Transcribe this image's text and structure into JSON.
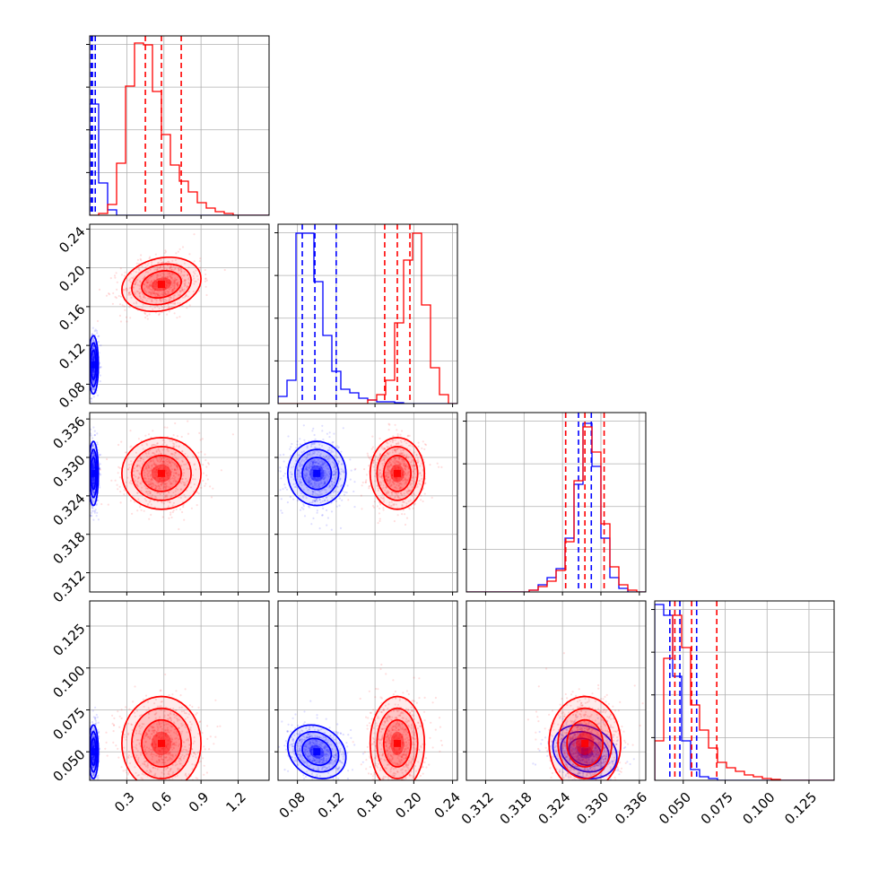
{
  "chart_data": {
    "type": "corner",
    "title": "",
    "parameters": [
      "",
      "",
      "",
      ""
    ],
    "colors": {
      "series_a": "#0000ff",
      "series_b": "#ff0000"
    },
    "grid": true,
    "legend": "none",
    "axes": [
      {
        "range": [
          0.0,
          1.45
        ],
        "ticks": [
          0.3,
          0.6,
          0.9,
          1.2
        ],
        "tick_labels": [
          "0.3",
          "0.6",
          "0.9",
          "1.2"
        ]
      },
      {
        "range": [
          0.06,
          0.245
        ],
        "ticks": [
          0.08,
          0.12,
          0.16,
          0.2,
          0.24
        ],
        "tick_labels": [
          "0.08",
          "0.12",
          "0.16",
          "0.20",
          "0.24"
        ]
      },
      {
        "range": [
          0.309,
          0.337
        ],
        "ticks": [
          0.312,
          0.318,
          0.324,
          0.33,
          0.336
        ],
        "tick_labels": [
          "0.312",
          "0.318",
          "0.324",
          "0.330",
          "0.336"
        ]
      },
      {
        "range": [
          0.033,
          0.14
        ],
        "ticks": [
          0.05,
          0.075,
          0.1,
          0.125
        ],
        "tick_labels": [
          "0.050",
          "0.075",
          "0.100",
          "0.125"
        ]
      }
    ],
    "series": [
      {
        "name": "",
        "color": "#0000ff",
        "means": [
          0.03,
          0.1,
          0.3275,
          0.05
        ],
        "sds": [
          0.02,
          0.015,
          0.0025,
          0.008
        ],
        "corr": {
          "1-3": -0.2,
          "2-3": -0.2
        },
        "quantiles": [
          [
            0.012,
            0.022,
            0.045
          ],
          [
            0.085,
            0.098,
            0.12
          ],
          [
            0.3245,
            0.3265,
            0.3285
          ],
          [
            0.042,
            0.048,
            0.058
          ]
        ],
        "histograms": [
          [
            0.62,
            0.18,
            0.03,
            0,
            0,
            0,
            0,
            0,
            0,
            0,
            0,
            0,
            0,
            0,
            0,
            0,
            0,
            0,
            0,
            0
          ],
          [
            0.04,
            0.13,
            0.95,
            0.95,
            0.68,
            0.38,
            0.18,
            0.08,
            0.06,
            0.03,
            0.02,
            0.01,
            0.01,
            0.005,
            0,
            0,
            0,
            0,
            0,
            0
          ],
          [
            0,
            0,
            0,
            0,
            0,
            0,
            0,
            0.01,
            0.04,
            0.08,
            0.13,
            0.3,
            0.6,
            0.94,
            0.7,
            0.3,
            0.08,
            0.02,
            0,
            0
          ],
          [
            0.98,
            0.92,
            0.58,
            0.22,
            0.06,
            0.02,
            0.01,
            0,
            0,
            0,
            0,
            0,
            0,
            0,
            0,
            0,
            0,
            0,
            0,
            0
          ]
        ]
      },
      {
        "name": "",
        "color": "#ff0000",
        "means": [
          0.58,
          0.183,
          0.3275,
          0.055
        ],
        "sds": [
          0.16,
          0.014,
          0.0028,
          0.014
        ],
        "corr": {
          "0-1": 0.2
        },
        "quantiles": [
          [
            0.45,
            0.58,
            0.74
          ],
          [
            0.17,
            0.183,
            0.196
          ],
          [
            0.3245,
            0.3275,
            0.3305
          ],
          [
            0.045,
            0.055,
            0.07
          ]
        ],
        "histograms": [
          [
            0,
            0.01,
            0.06,
            0.29,
            0.72,
            0.96,
            0.95,
            0.69,
            0.45,
            0.28,
            0.19,
            0.13,
            0.07,
            0.04,
            0.02,
            0.01,
            0,
            0,
            0,
            0
          ],
          [
            0,
            0,
            0,
            0,
            0,
            0,
            0,
            0,
            0,
            0,
            0.02,
            0.05,
            0.13,
            0.45,
            0.8,
            0.95,
            0.55,
            0.2,
            0.05,
            0
          ],
          [
            0,
            0,
            0,
            0,
            0,
            0,
            0,
            0.01,
            0.03,
            0.06,
            0.12,
            0.28,
            0.62,
            0.92,
            0.78,
            0.38,
            0.14,
            0.04,
            0.01,
            0
          ],
          [
            0.22,
            0.68,
            0.92,
            0.74,
            0.42,
            0.28,
            0.18,
            0.1,
            0.07,
            0.05,
            0.03,
            0.02,
            0.01,
            0.005,
            0,
            0,
            0,
            0,
            0,
            0
          ]
        ]
      }
    ]
  }
}
